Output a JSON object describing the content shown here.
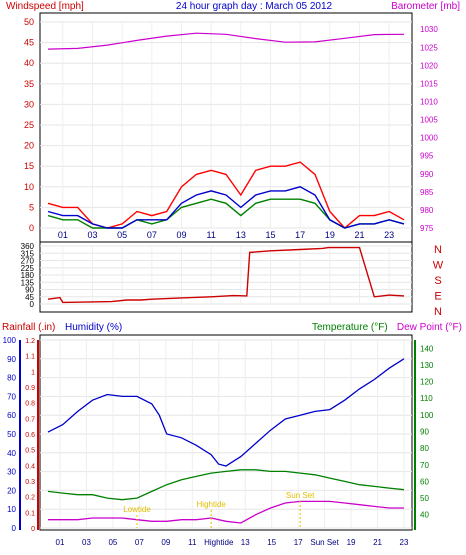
{
  "chart_data": [
    {
      "type": "line",
      "title": "24 hour graph day : March 05 2012",
      "left_label": "Windspeed [mph]",
      "right_label": "Barometer [mb]",
      "left_ticks": [
        "0",
        "5",
        "10",
        "15",
        "20",
        "25",
        "30",
        "35",
        "40",
        "45",
        "50"
      ],
      "right_ticks": [
        "975",
        "980",
        "985",
        "990",
        "995",
        "1000",
        "1005",
        "1010",
        "1015",
        "1020",
        "1025",
        "1030"
      ],
      "x_ticks": [
        "01",
        "03",
        "05",
        "07",
        "09",
        "11",
        "13",
        "15",
        "17",
        "19",
        "21",
        "23"
      ],
      "x_ticks_short": [
        "01",
        "03",
        "05",
        "07",
        "09",
        "11",
        "13",
        "15",
        "17",
        "19",
        "21",
        "23"
      ],
      "ylim_left": [
        0,
        50
      ],
      "ylim_right": [
        975,
        1032
      ],
      "series": [
        {
          "key": "gust",
          "color": "#ff0000",
          "x": [
            0,
            1,
            2,
            3,
            4,
            5,
            6,
            7,
            8,
            9,
            10,
            11,
            12,
            13,
            14,
            15,
            16,
            17,
            18,
            19,
            20,
            21,
            22,
            23,
            24
          ],
          "values": [
            6,
            5,
            5,
            1,
            0,
            1,
            4,
            3,
            4,
            10,
            13,
            14,
            13,
            8,
            14,
            15,
            15,
            16,
            13,
            4,
            0,
            3,
            3,
            4,
            2
          ]
        },
        {
          "key": "speed",
          "color": "#008000",
          "x": [
            0,
            1,
            2,
            3,
            4,
            5,
            6,
            7,
            8,
            9,
            10,
            11,
            12,
            13,
            14,
            15,
            16,
            17,
            18,
            19,
            20,
            21,
            22,
            23,
            24
          ],
          "values": [
            3,
            2,
            2,
            0,
            0,
            0,
            2,
            1,
            2,
            5,
            6,
            7,
            6,
            3,
            6,
            7,
            7,
            7,
            6,
            2,
            0,
            1,
            1,
            2,
            1
          ]
        },
        {
          "key": "average",
          "color": "#0000cc",
          "x": [
            0,
            1,
            2,
            3,
            4,
            5,
            6,
            7,
            8,
            9,
            10,
            11,
            12,
            13,
            14,
            15,
            16,
            17,
            18,
            19,
            20,
            21,
            22,
            23,
            24
          ],
          "values": [
            4,
            3,
            3,
            1,
            0,
            0,
            2,
            2,
            2,
            6,
            8,
            9,
            8,
            5,
            8,
            9,
            9,
            10,
            8,
            2,
            0,
            1,
            1,
            2,
            1
          ]
        },
        {
          "key": "barometer",
          "color": "#cc00cc",
          "axis": "right",
          "x": [
            0,
            2,
            4,
            6,
            8,
            10,
            12,
            14,
            16,
            18,
            20,
            22,
            24
          ],
          "values": [
            1024.5,
            1024.7,
            1025.6,
            1026.9,
            1028.1,
            1028.9,
            1028.6,
            1027.4,
            1026.4,
            1026.5,
            1027.5,
            1028.5,
            1028.6
          ]
        }
      ]
    },
    {
      "type": "line",
      "right_labels": [
        "N",
        "W",
        "S",
        "E",
        "N"
      ],
      "left_ticks": [
        "0",
        "45",
        "90",
        "135",
        "180",
        "225",
        "270",
        "315",
        "360"
      ],
      "x_ticks": [
        "01",
        "03",
        "05",
        "07",
        "09",
        "11",
        "13",
        "15",
        "17",
        "19",
        "21",
        "23"
      ],
      "ylim": [
        0,
        360
      ],
      "series": [
        {
          "key": "direction",
          "color": "#cc0000",
          "x": [
            0,
            0.8,
            1.0,
            4.3,
            5.3,
            6.3,
            7.0,
            9.0,
            11.0,
            12.5,
            13.4,
            13.6,
            15.0,
            17.0,
            18.5,
            18.9,
            19.0,
            19.5,
            20.5,
            21.0,
            22.0,
            23.0,
            24.0
          ],
          "values": [
            30,
            40,
            10,
            15,
            25,
            25,
            30,
            38,
            45,
            52,
            50,
            320,
            330,
            338,
            345,
            350,
            350,
            350,
            350,
            350,
            45,
            55,
            50
          ]
        }
      ]
    },
    {
      "type": "line",
      "left_label_rain": "Rainfall (.in)",
      "left_label_humidity": "Humidity (%)",
      "right_label_temp": "Temperature (°F)",
      "right_label_dew": "Dew Point (°F)",
      "rain_ticks": [
        "0",
        "0.1",
        "0.2",
        "0.3",
        "0.4",
        "0.5",
        "0.6",
        "0.7",
        "0.8",
        "0.9",
        "1",
        "1.1",
        "1.2"
      ],
      "humidity_ticks": [
        "0",
        "10",
        "20",
        "30",
        "40",
        "50",
        "60",
        "70",
        "80",
        "90",
        "100"
      ],
      "temp_ticks": [
        "40",
        "50",
        "60",
        "70",
        "80",
        "90",
        "100",
        "110",
        "120",
        "130",
        "140"
      ],
      "x_ticks": [
        "01",
        "03",
        "05",
        "07",
        "09",
        "11",
        "Hightide",
        "13",
        "15",
        "17",
        "Sun Set",
        "19",
        "21",
        "23"
      ],
      "annotations": [
        "Lowtide",
        "Hightide",
        "Sun Set"
      ],
      "ylim_humidity": [
        0,
        100
      ],
      "ylim_temp": [
        32,
        145
      ],
      "series": [
        {
          "key": "humidity",
          "color": "#0000cc",
          "axis": "left",
          "x": [
            0,
            1,
            2,
            3,
            4,
            5,
            6,
            7,
            7.5,
            8,
            9,
            10,
            11,
            11.5,
            12,
            12.4,
            13,
            14,
            15,
            16,
            17,
            18,
            19,
            20,
            21,
            22,
            23,
            24
          ],
          "values": [
            51,
            55,
            62,
            68,
            71,
            70,
            70,
            66,
            60,
            50,
            48,
            44,
            39,
            34,
            33,
            35,
            38,
            45,
            52,
            58,
            60,
            62,
            63,
            68,
            74,
            79,
            85,
            90
          ]
        },
        {
          "key": "temperature",
          "color": "#008000",
          "axis": "right",
          "x": [
            0,
            1,
            2,
            3,
            4,
            5,
            6,
            7,
            8,
            9,
            10,
            11,
            12,
            13,
            14,
            15,
            16,
            17,
            18,
            19,
            20,
            21,
            22,
            23,
            24
          ],
          "values": [
            54,
            53,
            52,
            52,
            50,
            49,
            50,
            54,
            58,
            61,
            63,
            65,
            66,
            67,
            67,
            66,
            66,
            65,
            64,
            62,
            60,
            58,
            57,
            56,
            55
          ]
        },
        {
          "key": "dewpoint",
          "color": "#cc00cc",
          "axis": "right",
          "x": [
            0,
            1,
            2,
            3,
            4,
            5,
            6,
            7,
            8,
            9,
            10,
            11,
            12,
            13,
            14,
            15,
            16,
            17,
            18,
            19,
            20,
            21,
            22,
            23,
            24
          ],
          "values": [
            37,
            37,
            37,
            38,
            38,
            38,
            37,
            36,
            36,
            37,
            37,
            38,
            36,
            35,
            40,
            44,
            47,
            48,
            48,
            48,
            47,
            46,
            45,
            44,
            44
          ]
        }
      ]
    }
  ]
}
